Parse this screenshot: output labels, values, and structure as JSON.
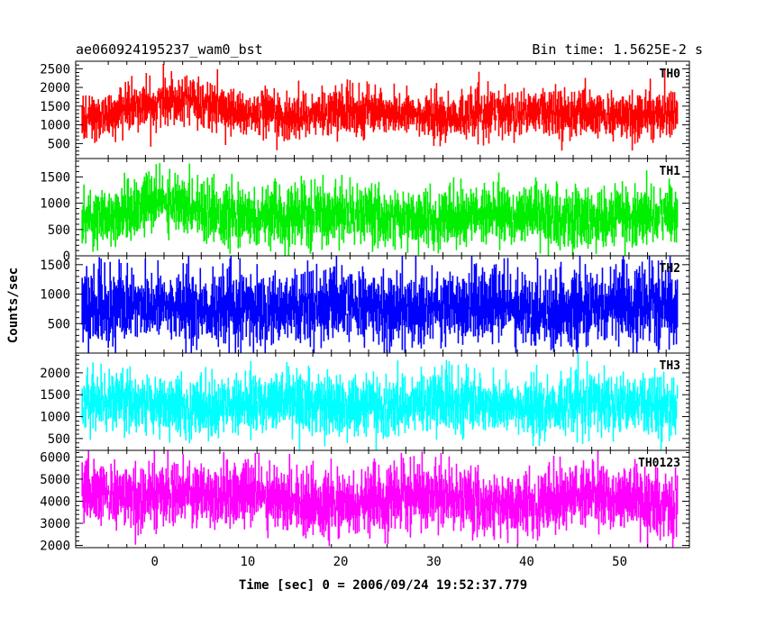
{
  "chart_data": {
    "type": "line",
    "title": "ae060924195237_wam0_bst",
    "subtitle": "Bin time: 1.5625E-2 s",
    "xlabel": "Time [sec] 0 = 2006/09/24 19:52:37.779",
    "ylabel": "Counts/sec",
    "xlim": [
      -8.5,
      57.5
    ],
    "x_ticks": [
      0,
      10,
      20,
      30,
      40,
      50
    ],
    "x_range_data": [
      -7.8,
      56.2
    ],
    "bin_time_s": 0.015625,
    "grid": false,
    "legend": "none",
    "panels": [
      {
        "name": "TH0",
        "color": "#ff0000",
        "ylim": [
          100,
          2700
        ],
        "yticks": [
          500,
          1000,
          1500,
          2000,
          2500
        ],
        "baseline": 1300,
        "noise": 300,
        "min_clip": 150,
        "max_clip": 2700,
        "features": [
          {
            "t": 2.5,
            "dt": 4.0,
            "amp": 350
          },
          {
            "t": -2.5,
            "dt": 1.5,
            "amp": 150
          }
        ]
      },
      {
        "name": "TH1",
        "color": "#00ee00",
        "ylim": [
          0,
          1850
        ],
        "yticks": [
          0,
          500,
          1000,
          1500
        ],
        "baseline": 750,
        "noise": 270,
        "min_clip": 0,
        "max_clip": 1850,
        "features": [
          {
            "t": 1.5,
            "dt": 4.5,
            "amp": 250
          }
        ]
      },
      {
        "name": "TH2",
        "color": "#0000ff",
        "ylim": [
          0,
          1650
        ],
        "yticks": [
          500,
          1000,
          1500
        ],
        "baseline": 780,
        "noise": 300,
        "min_clip": 0,
        "max_clip": 1650,
        "features": []
      },
      {
        "name": "TH3",
        "color": "#00ffff",
        "ylim": [
          230,
          2450
        ],
        "yticks": [
          500,
          1000,
          1500,
          2000
        ],
        "baseline": 1280,
        "noise": 330,
        "min_clip": 230,
        "max_clip": 2450,
        "features": []
      },
      {
        "name": "TH0123",
        "color": "#ff00ff",
        "ylim": [
          1900,
          6300
        ],
        "yticks": [
          2000,
          3000,
          4000,
          5000,
          6000
        ],
        "baseline": 4050,
        "noise": 700,
        "min_clip": 1900,
        "max_clip": 6300,
        "features": [
          {
            "t": 2.5,
            "dt": 4.0,
            "amp": 650
          }
        ]
      }
    ]
  }
}
